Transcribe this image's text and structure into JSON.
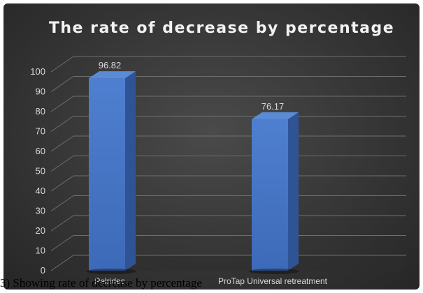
{
  "caption": "3) Showing rate of decrease by percentage",
  "colors": {
    "bar_front": "#4472c4",
    "bar_side": "#2f5496",
    "bar_top": "#5b8bd6",
    "grid": "#6f6f6f",
    "text": "#d9d9d9"
  },
  "chart_data": {
    "type": "bar",
    "title": "The rate of decrease by percentage",
    "xlabel": "",
    "ylabel": "",
    "categories": [
      "Pelridec",
      "ProTap Universal retreatment"
    ],
    "values": [
      96.82,
      76.17
    ],
    "data_labels": [
      "96.82",
      "76.17"
    ],
    "ylim": [
      0,
      100
    ],
    "ytick_labels": [
      "0",
      "10",
      "20",
      "30",
      "40",
      "50",
      "60",
      "70",
      "80",
      "90",
      "100"
    ],
    "grid": true,
    "legend": "none",
    "style": "3d-column"
  }
}
